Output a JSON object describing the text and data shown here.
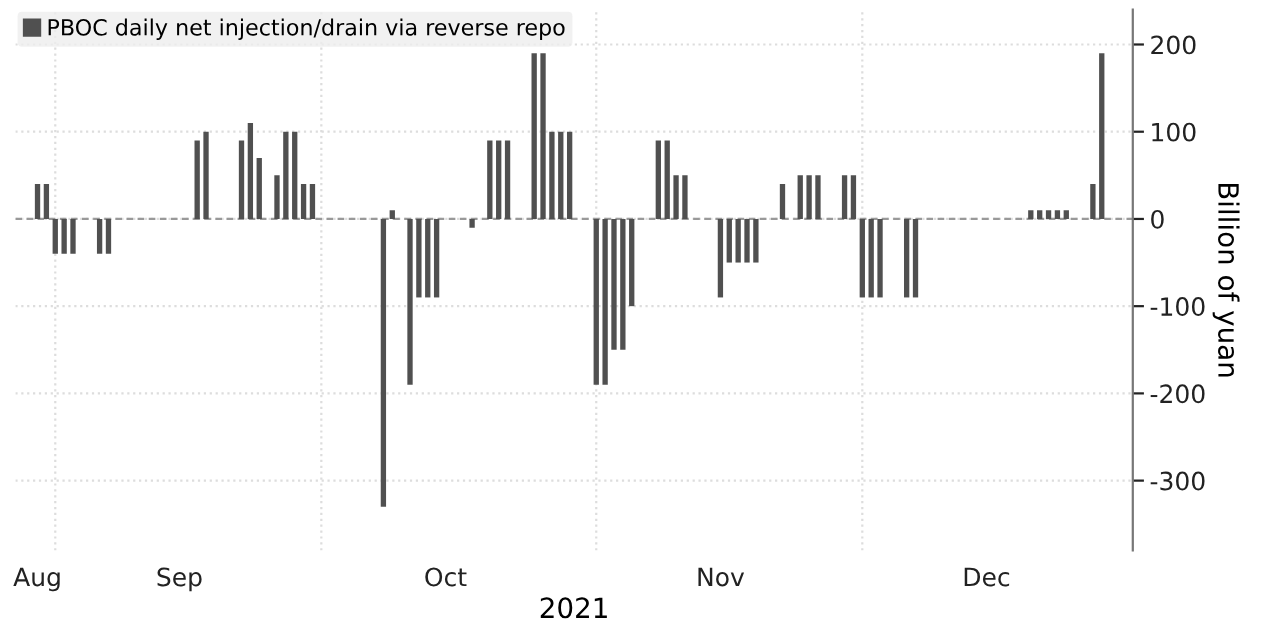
{
  "chart_data": {
    "type": "bar",
    "xlabel": "2021",
    "ylabel": "Billion of yuan",
    "x": [
      "2021-08-30",
      "2021-08-31",
      "2021-09-01",
      "2021-09-02",
      "2021-09-03",
      "2021-09-06",
      "2021-09-07",
      "2021-09-17",
      "2021-09-18",
      "2021-09-22",
      "2021-09-23",
      "2021-09-24",
      "2021-09-26",
      "2021-09-27",
      "2021-09-28",
      "2021-09-29",
      "2021-09-30",
      "2021-10-08",
      "2021-10-09",
      "2021-10-11",
      "2021-10-12",
      "2021-10-13",
      "2021-10-14",
      "2021-10-18",
      "2021-10-20",
      "2021-10-21",
      "2021-10-22",
      "2021-10-25",
      "2021-10-26",
      "2021-10-27",
      "2021-10-28",
      "2021-10-29",
      "2021-11-01",
      "2021-11-02",
      "2021-11-03",
      "2021-11-04",
      "2021-11-05",
      "2021-11-08",
      "2021-11-09",
      "2021-11-10",
      "2021-11-11",
      "2021-11-15",
      "2021-11-16",
      "2021-11-17",
      "2021-11-18",
      "2021-11-19",
      "2021-11-22",
      "2021-11-24",
      "2021-11-25",
      "2021-11-26",
      "2021-11-29",
      "2021-11-30",
      "2021-12-01",
      "2021-12-02",
      "2021-12-03",
      "2021-12-06",
      "2021-12-07",
      "2021-12-20",
      "2021-12-21",
      "2021-12-22",
      "2021-12-23",
      "2021-12-24",
      "2021-12-27",
      "2021-12-28"
    ],
    "series": [
      {
        "name": "PBOC daily net injection/drain via reverse repo",
        "color": "#505050",
        "values": [
          40,
          40,
          -40,
          -40,
          -40,
          -40,
          -40,
          90,
          100,
          90,
          110,
          70,
          50,
          100,
          100,
          40,
          40,
          -330,
          10,
          -190,
          -90,
          -90,
          -90,
          -10,
          90,
          90,
          90,
          190,
          190,
          100,
          100,
          100,
          -190,
          -190,
          -150,
          -150,
          -100,
          90,
          90,
          50,
          50,
          -90,
          -50,
          -50,
          -50,
          -50,
          40,
          50,
          50,
          50,
          50,
          50,
          -90,
          -90,
          -90,
          -90,
          -90,
          10,
          10,
          10,
          10,
          10,
          40,
          190
        ]
      }
    ],
    "xlim": [
      "2021-08-27T12:00",
      "2021-12-31T12:00"
    ],
    "xticks": [
      {
        "value": "2021-08-30",
        "label": "Aug"
      },
      {
        "value": "2021-09-01",
        "label": null
      },
      {
        "value": "2021-09-15",
        "label": "Sep"
      },
      {
        "value": "2021-10-01",
        "label": null
      },
      {
        "value": "2021-10-15",
        "label": "Oct"
      },
      {
        "value": "2021-11-01",
        "label": null
      },
      {
        "value": "2021-11-15",
        "label": "Nov"
      },
      {
        "value": "2021-12-01",
        "label": null
      },
      {
        "value": "2021-12-15",
        "label": "Dec"
      }
    ],
    "ylim": [
      -380,
      240
    ],
    "yticks": [
      -300,
      -200,
      -100,
      0,
      100,
      200
    ],
    "ref_lines": [
      {
        "axis": "y",
        "value": 0,
        "color": "#999999",
        "line_style": "dashed"
      }
    ],
    "grid": true,
    "legend": "top left"
  }
}
